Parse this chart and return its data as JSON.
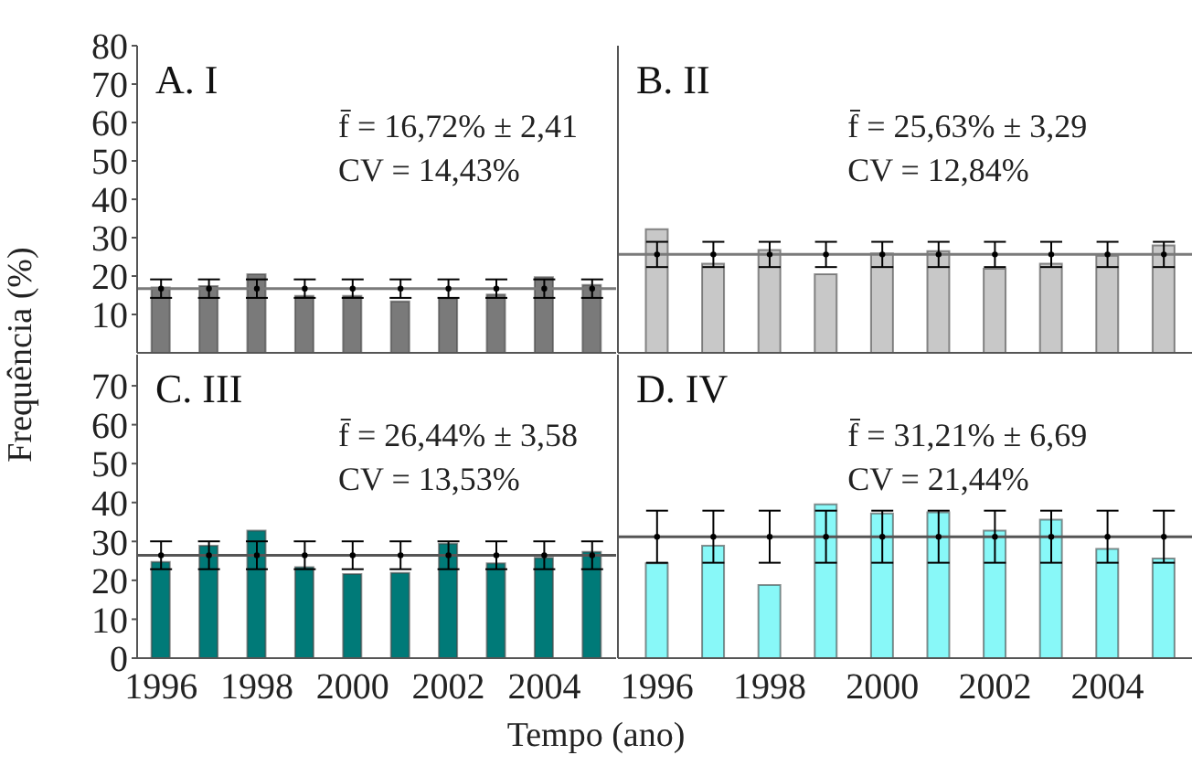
{
  "chart_data": [
    {
      "type": "bar",
      "title": "A. I",
      "ylabel": "Frequência (%)",
      "annotations": [
        "f̄ = 16,72% ± 2,41",
        "CV = 14,43%"
      ],
      "categories": [
        "1996",
        null,
        "1998",
        null,
        "2000",
        null,
        "2002",
        null,
        "2004",
        null
      ],
      "series": [
        {
          "color": "#7a7a7a",
          "values": [
            17,
            17.4,
            20.5,
            14.8,
            14.8,
            13.4,
            14.2,
            15.2,
            19.7,
            17.7
          ]
        },
        {
          "type": "scatter",
          "color": "#000000",
          "values": [
            16.72,
            16.72,
            16.72,
            16.72,
            16.72,
            16.72,
            16.72,
            16.72,
            16.72,
            16.72
          ],
          "errors": [
            2.41,
            2.41,
            2.41,
            2.41,
            2.41,
            2.41,
            2.41,
            2.41,
            2.41,
            2.41
          ]
        }
      ],
      "ref_lines": [
        {
          "axis": "y",
          "value": 16.72,
          "color": "#7a7a7a"
        }
      ],
      "ylim": [
        0,
        80
      ],
      "yticks": [
        10,
        20,
        30,
        40,
        50,
        60,
        70,
        80
      ],
      "tick_labels": "y",
      "marker": "circle"
    },
    {
      "type": "bar",
      "title": "B. II",
      "annotations": [
        "f̄ = 25,63% ± 3,29",
        "CV = 12,84%"
      ],
      "categories": [
        "1996",
        null,
        "1998",
        null,
        "2000",
        null,
        "2002",
        null,
        "2004",
        null
      ],
      "series": [
        {
          "color": "#c8c8c8",
          "values": [
            32.2,
            23.2,
            26.8,
            20.5,
            25.9,
            26.5,
            21.9,
            23.2,
            25.3,
            28
          ]
        },
        {
          "type": "scatter",
          "color": "#000000",
          "values": [
            25.63,
            25.63,
            25.63,
            25.63,
            25.63,
            25.63,
            25.63,
            25.63,
            25.63,
            25.63
          ],
          "errors": [
            3.29,
            3.29,
            3.29,
            3.29,
            3.29,
            3.29,
            3.29,
            3.29,
            3.29,
            3.29
          ]
        }
      ],
      "ref_lines": [
        {
          "axis": "y",
          "value": 25.63,
          "color": "#7a7a7a"
        }
      ],
      "ylim": [
        0,
        80
      ],
      "yticks": [
        10,
        20,
        30,
        40,
        50,
        60,
        70,
        80
      ],
      "tick_labels": false,
      "marker": "circle"
    },
    {
      "type": "bar",
      "title": "C. III",
      "xlabel": "Tempo (ano)",
      "annotations": [
        "f̄ = 26,44% ± 3,58",
        "CV = 13,53%"
      ],
      "categories": [
        "1996",
        null,
        "1998",
        null,
        "2000",
        null,
        "2002",
        null,
        "2004",
        null
      ],
      "series": [
        {
          "color": "#007a78",
          "values": [
            24.7,
            28.9,
            32.8,
            23.4,
            21.6,
            21.9,
            29.4,
            24.4,
            25.8,
            27.3
          ]
        },
        {
          "type": "scatter",
          "color": "#000000",
          "values": [
            26.44,
            26.44,
            26.44,
            26.44,
            26.44,
            26.44,
            26.44,
            26.44,
            26.44,
            26.44
          ],
          "errors": [
            3.58,
            3.58,
            3.58,
            3.58,
            3.58,
            3.58,
            3.58,
            3.58,
            3.58,
            3.58
          ]
        }
      ],
      "ref_lines": [
        {
          "axis": "y",
          "value": 26.44,
          "color": "#555555"
        }
      ],
      "ylim": [
        0,
        78
      ],
      "yticks": [
        0,
        10,
        20,
        30,
        40,
        50,
        60,
        70
      ],
      "marker": "circle"
    },
    {
      "type": "bar",
      "title": "D. IV",
      "annotations": [
        "f̄ = 31,21% ± 6,69",
        "CV = 21,44%"
      ],
      "categories": [
        "1996",
        null,
        "1998",
        null,
        "2000",
        null,
        "2002",
        null,
        "2004",
        null
      ],
      "series": [
        {
          "color": "#88f8f8",
          "values": [
            24.4,
            28.9,
            18.8,
            39.5,
            37.2,
            37.5,
            32.8,
            35.6,
            28.1,
            25.6
          ]
        },
        {
          "type": "scatter",
          "color": "#000000",
          "values": [
            31.21,
            31.21,
            31.21,
            31.21,
            31.21,
            31.21,
            31.21,
            31.21,
            31.21,
            31.21
          ],
          "errors": [
            6.69,
            6.69,
            6.69,
            6.69,
            6.69,
            6.69,
            6.69,
            6.69,
            6.69,
            6.69
          ]
        }
      ],
      "ref_lines": [
        {
          "axis": "y",
          "value": 31.21,
          "color": "#555555"
        }
      ],
      "ylim": [
        0,
        78
      ],
      "yticks": [
        0,
        10,
        20,
        30,
        40,
        50,
        60,
        70
      ],
      "tick_labels": "x",
      "marker": "circle"
    }
  ]
}
